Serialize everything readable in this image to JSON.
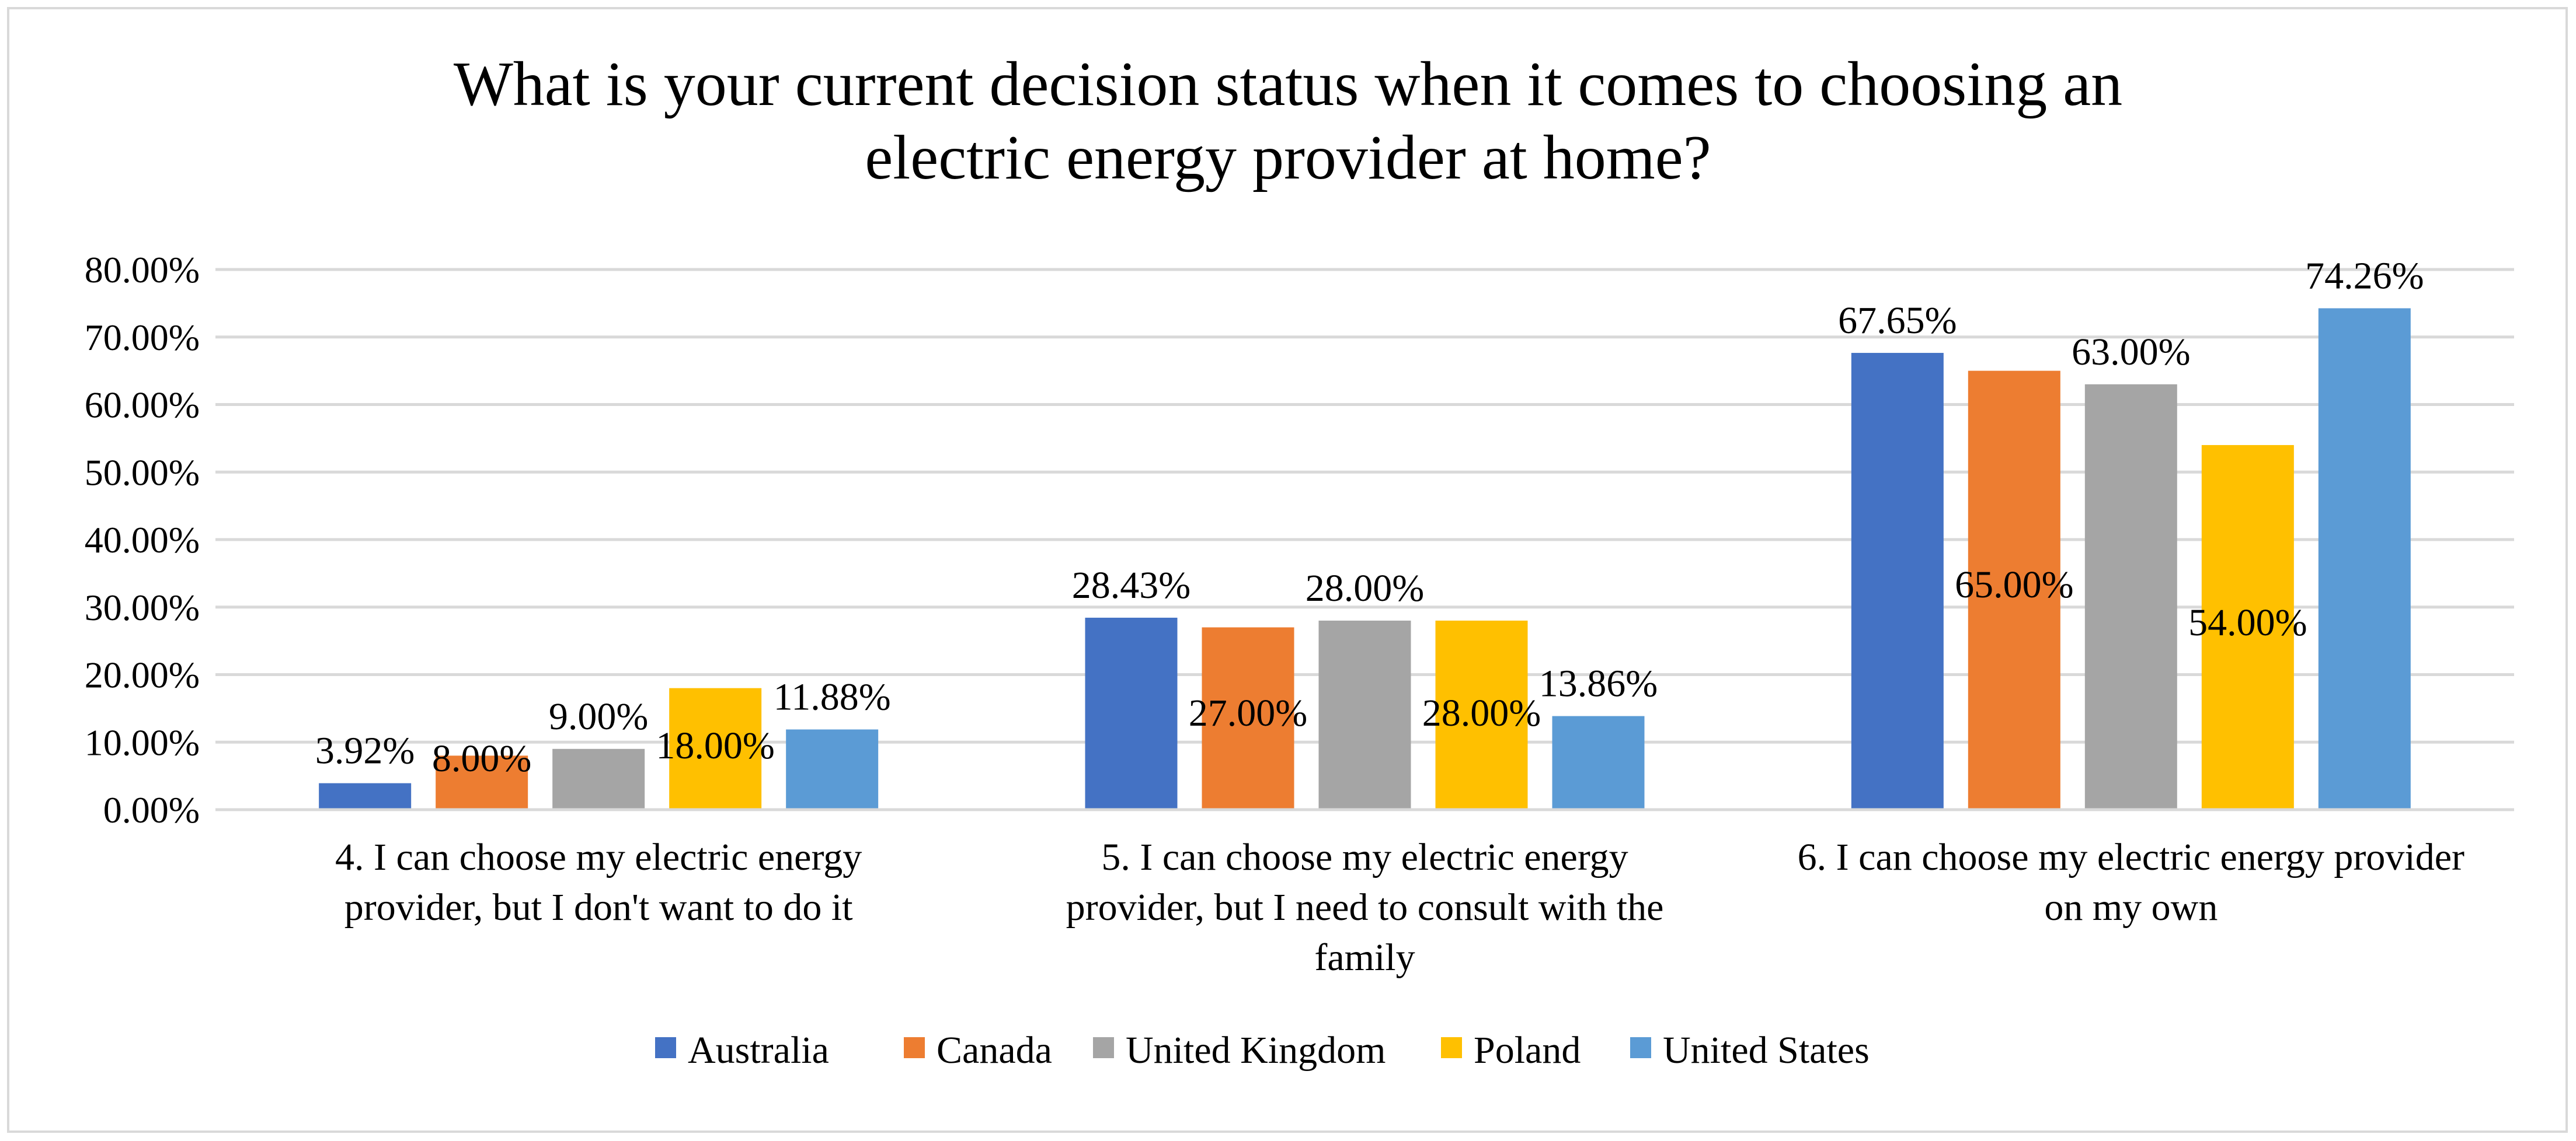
{
  "chart_data": {
    "type": "bar",
    "title_lines": [
      "What is your current decision status when it comes to choosing an",
      "electric energy provider at home?"
    ],
    "categories": [
      [
        "4. I can choose my electric energy",
        "provider, but I don't want to do it"
      ],
      [
        "5. I can choose my electric energy",
        "provider, but I need to consult with the",
        "family"
      ],
      [
        "6. I can choose my electric energy provider",
        "on my own"
      ]
    ],
    "series": [
      {
        "name": "Australia",
        "color": "#4472C4",
        "values": [
          3.92,
          28.43,
          67.65
        ],
        "labels": [
          "3.92%",
          "28.43%",
          "67.65%"
        ]
      },
      {
        "name": "Canada",
        "color": "#ED7D31",
        "values": [
          8.0,
          27.0,
          65.0
        ],
        "labels": [
          "8.00%",
          "27.00%",
          "65.00%"
        ]
      },
      {
        "name": "United Kingdom",
        "color": "#A5A5A5",
        "values": [
          9.0,
          28.0,
          63.0
        ],
        "labels": [
          "9.00%",
          "28.00%",
          "63.00%"
        ]
      },
      {
        "name": "Poland",
        "color": "#FFC000",
        "values": [
          18.0,
          28.0,
          54.0
        ],
        "labels": [
          "18.00%",
          "28.00%",
          "54.00%"
        ]
      },
      {
        "name": "United States",
        "color": "#5B9BD5",
        "values": [
          11.88,
          13.86,
          74.26
        ],
        "labels": [
          "11.88%",
          "13.86%",
          "74.26%"
        ]
      }
    ],
    "y_ticks": [
      "0.00%",
      "10.00%",
      "20.00%",
      "30.00%",
      "40.00%",
      "50.00%",
      "60.00%",
      "70.00%",
      "80.00%"
    ],
    "ylim": [
      0,
      80
    ],
    "ylabel": "",
    "xlabel": "",
    "grid": true,
    "legend_position": "bottom"
  }
}
